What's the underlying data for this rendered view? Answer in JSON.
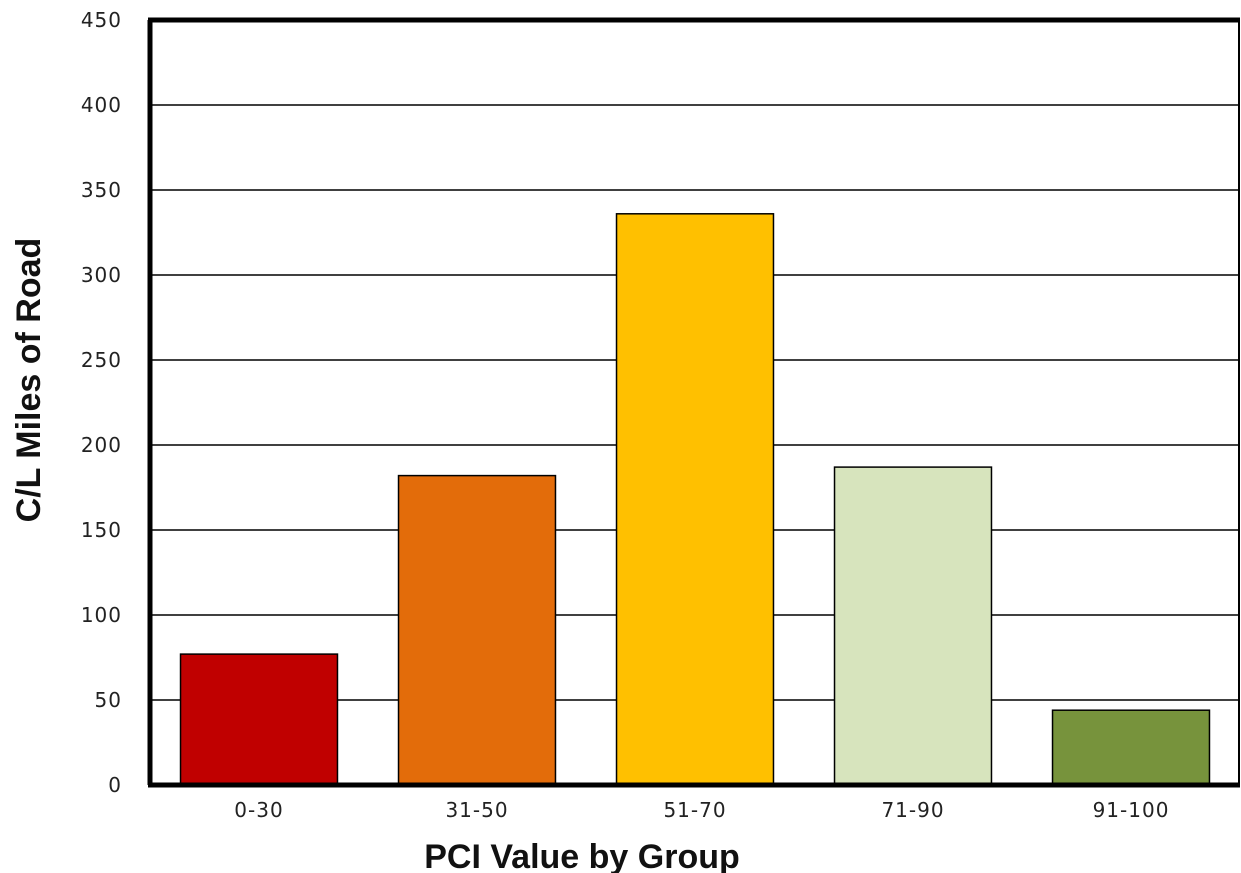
{
  "chart_data": {
    "type": "bar",
    "title": "",
    "xlabel": "PCI Value by Group",
    "ylabel": "C/L Miles of Road",
    "categories": [
      "0-30",
      "31-50",
      "51-70",
      "71-90",
      "91-100"
    ],
    "values": [
      77,
      182,
      336,
      187,
      44
    ],
    "colors": [
      "#c00000",
      "#e36c0a",
      "#ffc000",
      "#d7e4bd",
      "#77933c"
    ],
    "ylim": [
      0,
      450
    ],
    "yticks": [
      0,
      50,
      100,
      150,
      200,
      250,
      300,
      350,
      400,
      450
    ],
    "grid": true
  }
}
